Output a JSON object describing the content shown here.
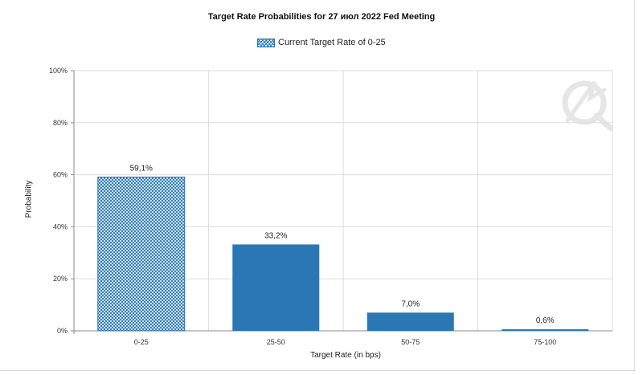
{
  "chart_data": {
    "type": "bar",
    "title": "Target Rate Probabilities for 27 июл 2022 Fed Meeting",
    "legend": [
      {
        "name": "Current Target Rate of 0-25",
        "placement": "top-center"
      }
    ],
    "xlabel": "Target Rate (in bps)",
    "ylabel": "Probability",
    "categories": [
      "0-25",
      "25-50",
      "50-75",
      "75-100"
    ],
    "values": [
      59.1,
      33.2,
      7.0,
      0.6
    ],
    "data_labels": [
      "59,1%",
      "33,2%",
      "7,0%",
      "0,6%"
    ],
    "yticks": [
      "0%",
      "20%",
      "40%",
      "60%",
      "80%",
      "100%"
    ],
    "ylim": [
      0,
      100
    ],
    "grid": true,
    "highlight_category": "0-25",
    "colors": {
      "bar": "#2a77b4",
      "highlight_pattern": "crosshatch",
      "grid": "#dddddd"
    }
  }
}
